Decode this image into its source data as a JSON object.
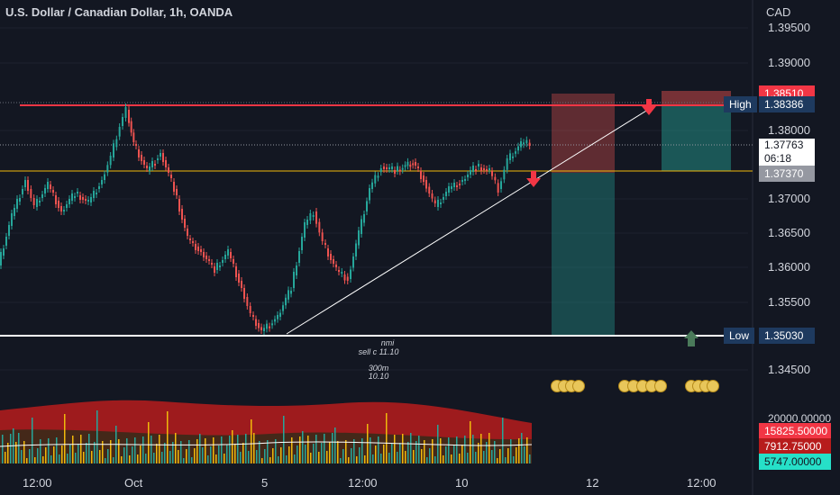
{
  "header": {
    "title": "U.S. Dollar / Canadian Dollar, 1h, OANDA",
    "currency": "CAD"
  },
  "price_axis": [
    "1.39500",
    "1.39000",
    "1.38000",
    "1.37000",
    "1.36500",
    "1.36000",
    "1.35500",
    "1.34500"
  ],
  "badges": {
    "top_red": "1.38510",
    "high_label": "High",
    "high_value": "1.38386",
    "current": "1.37763",
    "countdown": "06:18",
    "gray": "1.37370",
    "low_label": "Low",
    "low_value": "1.35030"
  },
  "annotations": {
    "a1": "nmi",
    "a2": "sell c 11.10",
    "a3": "300m",
    "a4": "10.10"
  },
  "volume_badges": {
    "top": "20000.00000",
    "red1": "15825.50000",
    "red2": "7912.75000",
    "teal": "5747.00000"
  },
  "time_axis": [
    "12:00",
    "Oct",
    "5",
    "12:00",
    "10",
    "12",
    "12:00"
  ],
  "colors": {
    "bg": "#131722",
    "up": "#26a69a",
    "down": "#ef5350",
    "resistance": "#f23645",
    "support": "#ffffff",
    "gold": "#f0b90b"
  }
}
